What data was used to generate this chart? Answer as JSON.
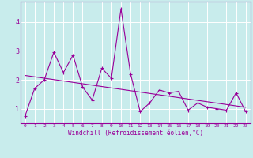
{
  "title": "",
  "xlabel": "Windchill (Refroidissement éolien,°C)",
  "bg_color": "#c8ecec",
  "line_color": "#990099",
  "grid_color": "#ffffff",
  "xlim": [
    -0.5,
    23.5
  ],
  "ylim": [
    0.5,
    4.7
  ],
  "xticks": [
    0,
    1,
    2,
    3,
    4,
    5,
    6,
    7,
    8,
    9,
    10,
    11,
    12,
    13,
    14,
    15,
    16,
    17,
    18,
    19,
    20,
    21,
    22,
    23
  ],
  "yticks": [
    1,
    2,
    3,
    4
  ],
  "series1_x": [
    0,
    1,
    2,
    3,
    4,
    5,
    6,
    7,
    8,
    9,
    10,
    11,
    12,
    13,
    14,
    15,
    16,
    17,
    18,
    19,
    20,
    21,
    22,
    23
  ],
  "series1_y": [
    0.75,
    1.7,
    2.0,
    2.95,
    2.25,
    2.85,
    1.75,
    1.3,
    2.4,
    2.05,
    4.45,
    2.2,
    0.9,
    1.2,
    1.65,
    1.55,
    1.6,
    0.95,
    1.2,
    1.05,
    1.0,
    0.95,
    1.55,
    0.9
  ],
  "trend_x": [
    0,
    23
  ],
  "trend_y": [
    2.15,
    1.05
  ]
}
